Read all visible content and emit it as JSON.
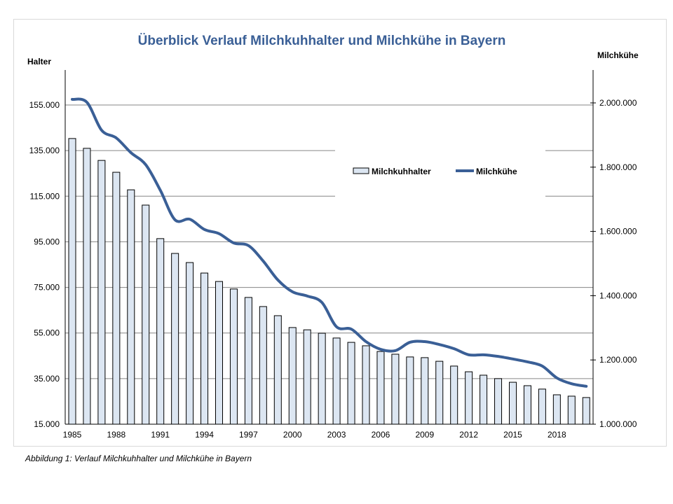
{
  "chart_data": {
    "type": "bar+line",
    "title": "Überblick Verlauf Milchkuhhalter und Milchkühe in Bayern",
    "ylabel_left": "Halter",
    "ylabel_right": "Milchkühe",
    "ylim_left": [
      15000,
      155000
    ],
    "ylim_right": [
      1000000,
      2000000
    ],
    "left_ticks": [
      "15.000",
      "35.000",
      "55.000",
      "75.000",
      "95.000",
      "115.000",
      "135.000",
      "155.000"
    ],
    "right_ticks": [
      "1.000.000",
      "1.200.000",
      "1.400.000",
      "1.600.000",
      "1.800.000",
      "2.000.000"
    ],
    "x_tick_labels": [
      "1985",
      "1988",
      "1991",
      "1994",
      "1997",
      "2000",
      "2003",
      "2006",
      "2009",
      "2012",
      "2015",
      "2018"
    ],
    "grid": true,
    "legend_placement": "top-right",
    "years": [
      1985,
      1986,
      1987,
      1988,
      1989,
      1990,
      1991,
      1992,
      1993,
      1994,
      1995,
      1996,
      1997,
      1998,
      1999,
      2000,
      2001,
      2002,
      2003,
      2004,
      2005,
      2006,
      2007,
      2008,
      2009,
      2010,
      2011,
      2012,
      2013,
      2014,
      2015,
      2016,
      2017,
      2018,
      2019,
      2020
    ],
    "series": [
      {
        "name": "Milchkuhhalter",
        "type": "bar",
        "axis": "left",
        "color": "#dce6f2",
        "values": [
          140300,
          136000,
          130700,
          125500,
          117800,
          111100,
          96400,
          89900,
          85900,
          81300,
          77600,
          74300,
          70600,
          66600,
          62600,
          57400,
          56400,
          54900,
          52800,
          50900,
          49400,
          46900,
          45700,
          44500,
          44200,
          42600,
          40500,
          38000,
          36500,
          35000,
          33400,
          31900,
          30400,
          27900,
          27300,
          26700
        ]
      },
      {
        "name": "Milchkühe",
        "type": "line",
        "axis": "right",
        "color": "#3a5f96",
        "values": [
          2011000,
          2002000,
          1915000,
          1891000,
          1845000,
          1808000,
          1728000,
          1636000,
          1638000,
          1606000,
          1593000,
          1564000,
          1556000,
          1508000,
          1449000,
          1412000,
          1399000,
          1379000,
          1303000,
          1296000,
          1257000,
          1233000,
          1229000,
          1255000,
          1257000,
          1248000,
          1235000,
          1216000,
          1216000,
          1211000,
          1203000,
          1194000,
          1181000,
          1144000,
          1126000,
          1118000
        ]
      }
    ]
  },
  "caption": "Abbildung 1: Verlauf Milchkuhhalter und Milchkühe in Bayern"
}
